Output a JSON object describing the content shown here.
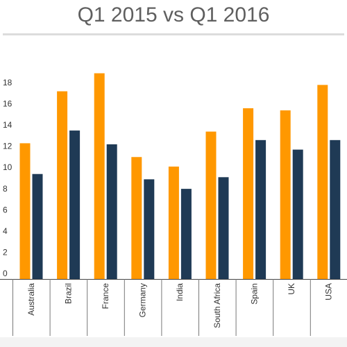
{
  "header": {
    "title_partial": "",
    "subtitle": "Q1 2015 vs Q1 2016"
  },
  "colors": {
    "series_2015": "#ff9800",
    "series_2016": "#1f3a55"
  },
  "chart_data": {
    "type": "bar",
    "title": "Q1 2015 vs Q1 2016",
    "categories": [
      "Australia",
      "Brazil",
      "France",
      "Germany",
      "India",
      "South Africa",
      "Spain",
      "UK",
      "USA"
    ],
    "series": [
      {
        "values": [
          12.8,
          17.7,
          19.4,
          11.5,
          10.6,
          13.9,
          16.1,
          15.9,
          18.3
        ]
      },
      {
        "values": [
          9.9,
          14.0,
          12.7,
          9.4,
          8.5,
          9.6,
          13.1,
          12.2,
          13.1
        ]
      }
    ],
    "yticks": [
      0,
      2,
      4,
      6,
      8,
      10,
      12,
      14,
      16,
      18
    ],
    "ylim": [
      0,
      20
    ],
    "xlabel": "",
    "ylabel": "",
    "grid": false,
    "legend": "none"
  }
}
